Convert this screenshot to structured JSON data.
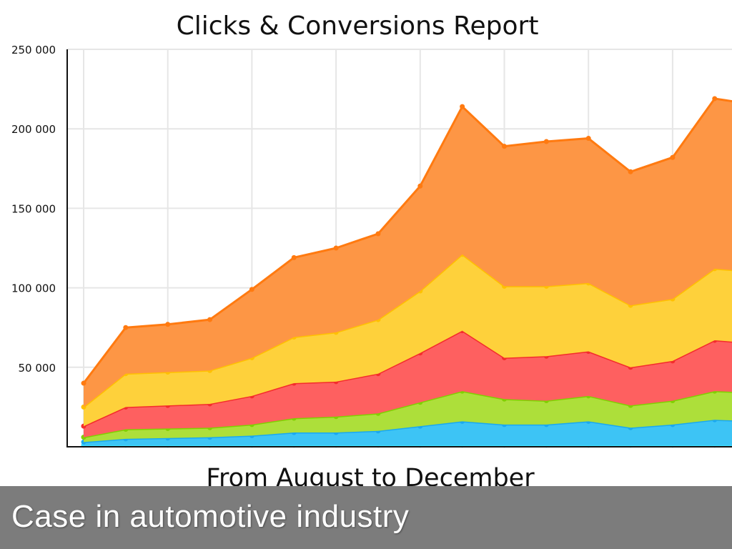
{
  "chart_data": {
    "type": "area",
    "stacked": true,
    "title": "Clicks & Conversions Report",
    "xlabel": "From August to December",
    "ylabel": "",
    "ylim": [
      0,
      250000
    ],
    "yticks": [
      50000,
      100000,
      150000,
      200000,
      250000
    ],
    "ytick_labels": [
      "50 000",
      "100 000",
      "150 000",
      "200 000",
      "250 000"
    ],
    "grid": true,
    "legend": "none",
    "x": [
      0,
      1,
      2,
      3,
      4,
      5,
      6,
      7,
      8,
      9,
      10,
      11,
      12,
      13,
      14,
      15,
      16
    ],
    "series": [
      {
        "color": "#5fe8ff",
        "line": "#3ddcff",
        "values": [
          1000,
          1000,
          1000,
          1000,
          1000,
          1000,
          1000,
          1000,
          1000,
          1000,
          1000,
          1000,
          1000,
          1000,
          1000,
          1000,
          1000
        ]
      },
      {
        "color": "#3dc4f5",
        "line": "#1aa8f0",
        "values": [
          2000,
          4000,
          4500,
          5000,
          6000,
          8000,
          8000,
          9000,
          12000,
          15000,
          13000,
          13000,
          15000,
          11000,
          13000,
          16000,
          15000
        ]
      },
      {
        "color": "#addf3a",
        "line": "#80d000",
        "values": [
          3000,
          6000,
          6000,
          6000,
          7000,
          9000,
          10000,
          11000,
          15000,
          19000,
          16000,
          15000,
          16000,
          14000,
          15000,
          18000,
          18000
        ]
      },
      {
        "color": "#fe6060",
        "line": "#f42c2c",
        "values": [
          7000,
          14000,
          14500,
          15000,
          18000,
          22000,
          22000,
          25000,
          31000,
          38000,
          26000,
          28000,
          28000,
          24000,
          25000,
          32000,
          31000
        ]
      },
      {
        "color": "#fed13b",
        "line": "#ffc000",
        "values": [
          12000,
          21000,
          21000,
          21000,
          24000,
          29000,
          31000,
          34000,
          39000,
          48000,
          45000,
          44000,
          43000,
          39000,
          39000,
          45000,
          45000
        ]
      },
      {
        "color": "#fd9645",
        "line": "#ff7a10",
        "values": [
          15000,
          29000,
          30000,
          32000,
          43000,
          50000,
          53000,
          54000,
          66000,
          93000,
          88000,
          91000,
          91000,
          84000,
          89000,
          107000,
          105000
        ]
      }
    ]
  },
  "caption": "Case in automotive industry"
}
